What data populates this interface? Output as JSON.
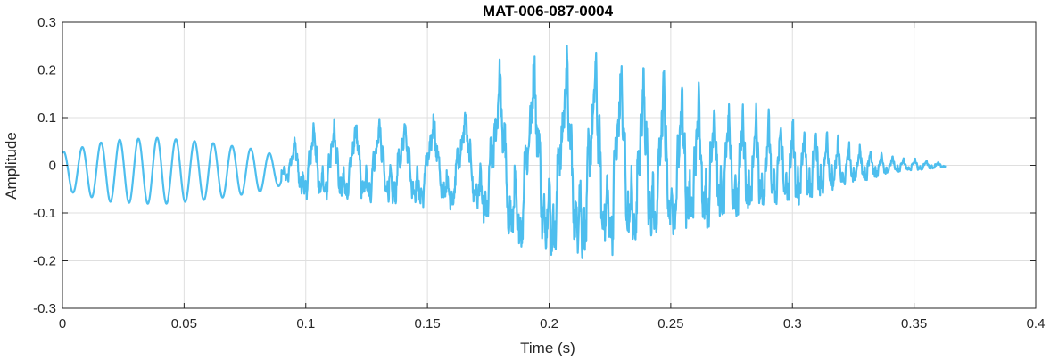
{
  "chart_data": {
    "type": "line",
    "title": "MAT-006-087-0004",
    "xlabel": "Time (s)",
    "ylabel": "Amplitude",
    "xlim": [
      0,
      0.4
    ],
    "ylim": [
      -0.3,
      0.3
    ],
    "x_ticks": [
      0,
      0.05,
      0.1,
      0.15,
      0.2,
      0.25,
      0.3,
      0.35,
      0.4
    ],
    "x_tick_labels": [
      "0",
      "0.05",
      "0.1",
      "0.15",
      "0.2",
      "0.25",
      "0.3",
      "0.35",
      "0.4"
    ],
    "y_ticks": [
      0.3,
      0.2,
      0.1,
      0,
      -0.1,
      -0.2,
      -0.3
    ],
    "y_tick_labels": [
      "0.3",
      "0.2",
      "0.1",
      "0",
      "-0.1",
      "-0.2",
      "-0.3"
    ],
    "grid": true,
    "line_color": "#4DBEEE",
    "signal_end_s": 0.363,
    "envelope": {
      "t": [
        0,
        0.02,
        0.04,
        0.06,
        0.08,
        0.09,
        0.1,
        0.12,
        0.13,
        0.15,
        0.17,
        0.18,
        0.19,
        0.2,
        0.21,
        0.22,
        0.23,
        0.25,
        0.27,
        0.29,
        0.31,
        0.32,
        0.33,
        0.34,
        0.35,
        0.363
      ],
      "peak": [
        0.04,
        0.065,
        0.07,
        0.06,
        0.045,
        0.03,
        0.09,
        0.1,
        0.1,
        0.11,
        0.12,
        0.22,
        0.23,
        0.24,
        0.25,
        0.24,
        0.23,
        0.2,
        0.15,
        0.12,
        0.09,
        0.06,
        0.04,
        0.02,
        0.015,
        0.005
      ]
    }
  }
}
